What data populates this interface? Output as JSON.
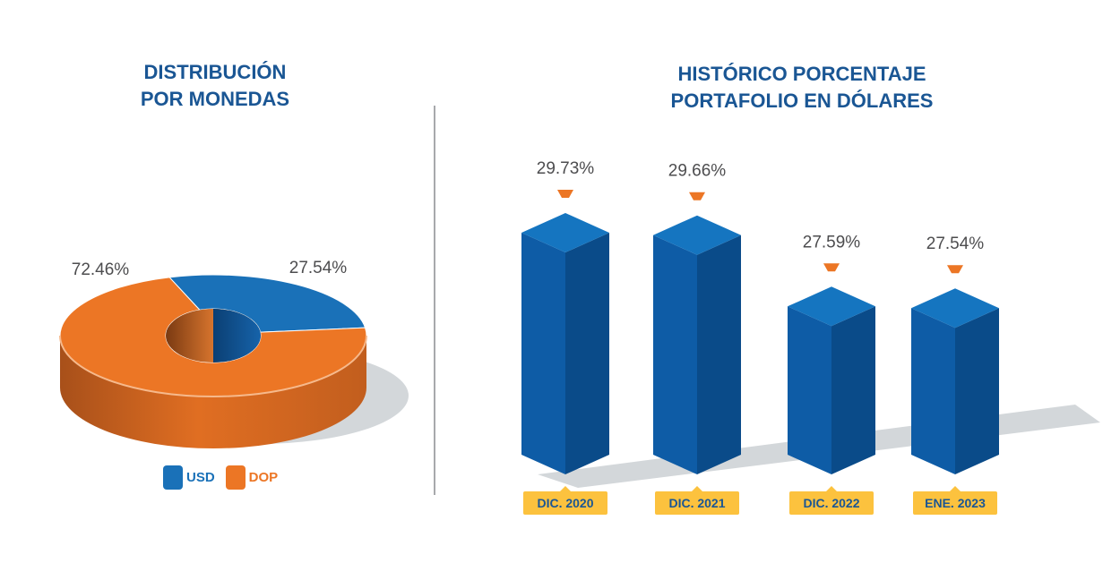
{
  "pie": {
    "title_line1": "DISTRIBUCIÓN",
    "title_line2": "POR MONEDAS"
  },
  "bars": {
    "title_line1": "HISTÓRICO PORCENTAJE",
    "title_line2": "PORTAFOLIO EN DÓLARES"
  },
  "colors": {
    "title": "#1a5694",
    "usd": "#1a71b8",
    "dop": "#ec7625",
    "bar_front": "#0e5ca6",
    "bar_side": "#0a4b89",
    "bar_top": "#1575c0",
    "marker": "#ec7625",
    "category_bg": "#fcc23e",
    "shadow": "#d3d7da"
  },
  "chart_data": [
    {
      "type": "pie",
      "categories": [
        "USD",
        "DOP"
      ],
      "values": [
        27.54,
        72.46
      ],
      "labels": [
        "27.54%",
        "72.46%"
      ],
      "legend": [
        "USD",
        "DOP"
      ],
      "legend_position": "bottom",
      "title": "DISTRIBUCIÓN POR MONEDAS"
    },
    {
      "type": "bar",
      "categories": [
        "DIC. 2020",
        "DIC. 2021",
        "DIC. 2022",
        "ENE. 2023"
      ],
      "values": [
        29.73,
        29.66,
        27.59,
        27.54
      ],
      "labels": [
        "29.73%",
        "29.66%",
        "27.59%",
        "27.54%"
      ],
      "title": "HISTÓRICO PORCENTAJE PORTAFOLIO EN DÓLARES",
      "grid": false
    }
  ]
}
